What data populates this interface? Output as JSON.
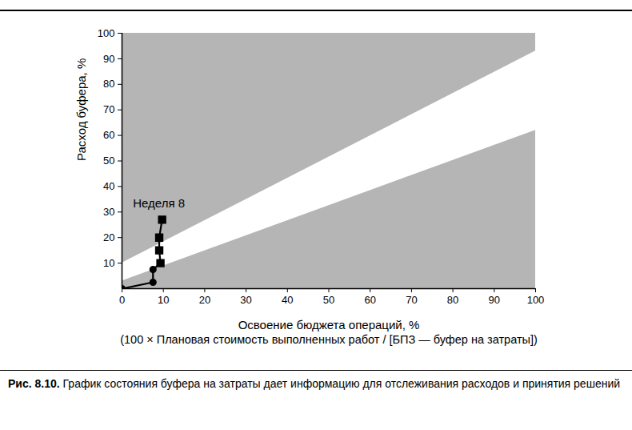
{
  "chart_data": {
    "type": "line",
    "y_label": "Расход буфера, %",
    "x_label": "Освоение бюджета операций, %",
    "x_sublabel": "(100 × Плановая стоимость выполненных работ / [БПЗ — буфер на затраты])",
    "figure_label": "Рис. 8.10.",
    "caption": "График состояния буфера на затраты дает информацию для отслеживания расходов и принятия решений",
    "xlim": [
      0,
      100
    ],
    "xticks": [
      0,
      10,
      20,
      30,
      40,
      50,
      60,
      70,
      80,
      90,
      100
    ],
    "ylim": [
      0,
      100
    ],
    "yticks": [
      10,
      20,
      30,
      40,
      50,
      60,
      70,
      80,
      90,
      100
    ],
    "grid": false,
    "bands": {
      "color": "#b5b5b5",
      "x": [
        0,
        100
      ],
      "upper": [
        10,
        93
      ],
      "lower": [
        3,
        62
      ]
    },
    "series": [
      {
        "type": "line",
        "color": "#000000",
        "x": [
          0,
          7.5,
          7.5,
          9.3,
          9,
          9,
          9.7
        ],
        "values": [
          0,
          2.5,
          7.5,
          10,
          15,
          20,
          27
        ]
      },
      {
        "type": "scatter",
        "marker": "circle",
        "color": "#000000",
        "x": [
          0,
          7.5,
          7.5
        ],
        "values": [
          0,
          2.5,
          7.5
        ]
      },
      {
        "type": "scatter",
        "marker": "square",
        "color": "#000000",
        "x": [
          9.3,
          9,
          9,
          9.7
        ],
        "values": [
          10,
          15,
          20,
          27
        ]
      }
    ],
    "annotations": [
      {
        "text": "Неделя 8",
        "x": 9.7,
        "y": 27
      }
    ]
  }
}
